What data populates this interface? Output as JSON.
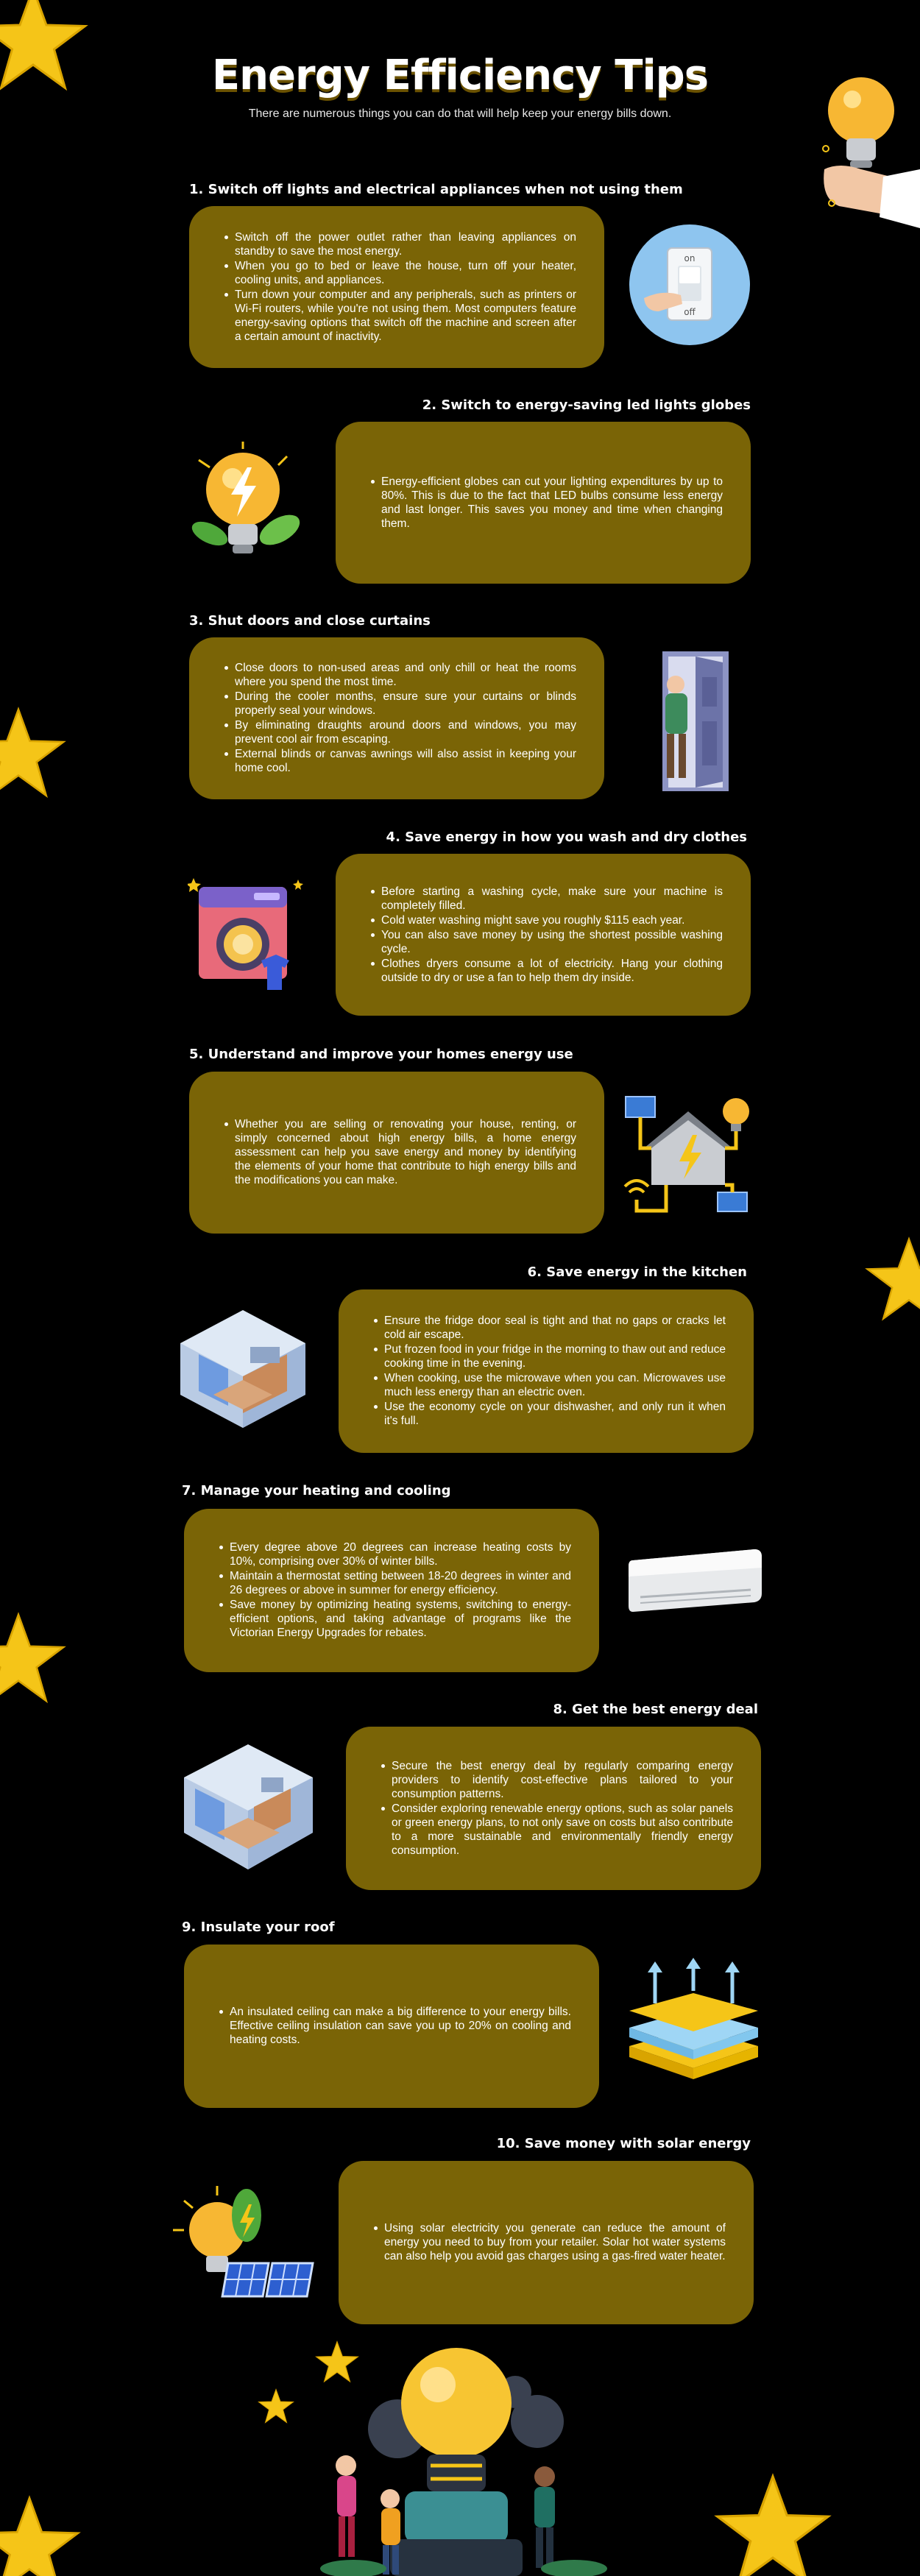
{
  "header": {
    "title": "Energy Efficiency Tips",
    "subtitle": "There are numerous things you can do that will help keep your energy bills down."
  },
  "sections": [
    {
      "heading": "1. Switch off lights and electrical appliances when not using them",
      "items": [
        "Switch off the power outlet rather than leaving appliances on standby to save the most energy.",
        "When you go to bed or leave the house, turn off your heater, cooling units, and appliances.",
        "Turn down your computer and any peripherals, such as printers or Wi-Fi routers, while you're not using them. Most computers feature energy-saving options that switch off the machine and screen after a certain amount of inactivity."
      ]
    },
    {
      "heading": "2. Switch to energy-saving led lights globes",
      "items": [
        "Energy-efficient globes can cut your lighting expenditures by up to 80%. This is due to the fact that LED bulbs consume less energy and last longer. This saves you money and time when changing them."
      ]
    },
    {
      "heading": "3. Shut doors and close curtains",
      "items": [
        "Close doors to non-used areas and only chill or heat the rooms where you spend the most time.",
        "During the cooler months, ensure sure your curtains or blinds properly seal your windows.",
        "By eliminating draughts around doors and windows, you may prevent cool air from escaping.",
        "External blinds or canvas awnings will also assist in keeping your home cool."
      ]
    },
    {
      "heading": "4.  Save energy  in how you wash  and dry clothes",
      "items": [
        "Before starting a washing cycle, make sure your machine is completely filled.",
        "Cold water washing might save you roughly $115 each year.",
        "You can also save money by using the shortest possible washing cycle.",
        "Clothes dryers consume a lot of electricity. Hang your clothing outside to dry or use a fan to help them dry inside."
      ]
    },
    {
      "heading": "5. Understand and improve your homes energy use",
      "items": [
        "Whether you are selling or renovating your house, renting, or simply concerned about high energy bills, a home energy assessment can help you save energy and money by identifying the elements of your home that contribute to high energy bills and the modifications you can make."
      ]
    },
    {
      "heading": "6. Save energy in the kitchen",
      "items": [
        "Ensure the fridge door seal is tight and that no gaps or cracks let cold air escape.",
        "Put frozen food in your fridge in the morning to thaw out and reduce cooking time in the evening.",
        "When cooking, use the microwave when you can. Microwaves use much less energy than an electric oven.",
        "Use the economy cycle on your dishwasher, and only run it when it's full."
      ]
    },
    {
      "heading": "7. Manage your heating and cooling",
      "items": [
        "Every degree above 20 degrees can increase heating costs by 10%, comprising over 30% of winter bills.",
        "Maintain a thermostat setting between 18-20 degrees in winter and 26 degrees or above in summer for energy efficiency.",
        "Save money by optimizing heating systems, switching to energy-efficient options, and taking advantage of programs like the Victorian Energy Upgrades for rebates."
      ]
    },
    {
      "heading": "8. Get the best energy deal",
      "items": [
        "Secure the best energy deal by regularly comparing energy providers to identify cost-effective plans tailored to your consumption patterns.",
        "Consider exploring renewable energy options, such as solar panels or green energy plans, to not only save on costs but also contribute to a more sustainable and environmentally friendly energy consumption."
      ]
    },
    {
      "heading": "9. Insulate your roof",
      "items": [
        "An insulated ceiling can make a big difference to your energy bills. Effective ceiling insulation can save you up to 20% on cooling and heating costs."
      ]
    },
    {
      "heading": "10.  Save money  with solar energy",
      "items": [
        "Using solar electricity you generate can reduce the amount of energy you need to buy from your retailer. Solar hot water systems can also help you avoid gas charges using a gas-fired water heater."
      ]
    }
  ],
  "switch_labels": {
    "on": "on",
    "off": "off"
  },
  "colors": {
    "card": "#7a6406",
    "star": "#f5c518",
    "background": "#000000"
  },
  "icons": [
    "star-icon",
    "hand-lightbulb-icon",
    "light-switch-icon",
    "led-bulb-icon",
    "open-door-icon",
    "washing-machine-icon",
    "smart-home-icon",
    "kitchen-room-icon",
    "air-conditioner-icon",
    "house-room-icon",
    "roof-insulation-icon",
    "solar-panel-icon",
    "people-lightbulb-icon"
  ]
}
